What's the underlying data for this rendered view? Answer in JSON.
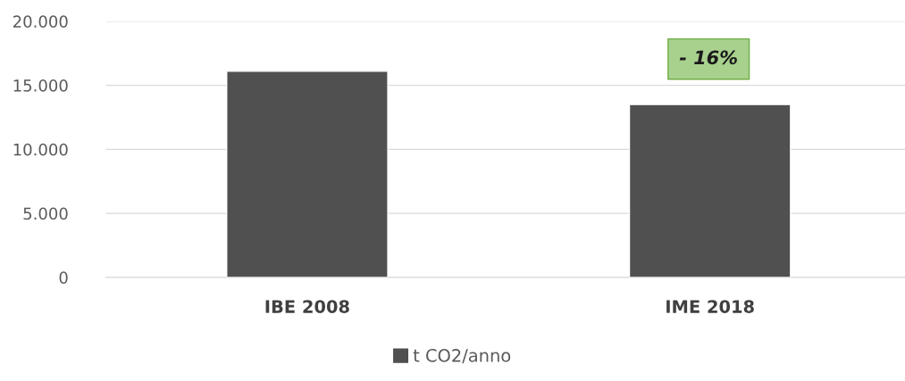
{
  "chart_data": {
    "type": "bar",
    "categories": [
      "IBE 2008",
      "IME 2018"
    ],
    "series": [
      {
        "name": "t CO2/anno",
        "color": "#505050",
        "values": [
          16100,
          13500
        ]
      }
    ],
    "ylim": [
      0,
      20000
    ],
    "yticks": [
      {
        "value": 0,
        "label": "0"
      },
      {
        "value": 5000,
        "label": "5.000"
      },
      {
        "value": 10000,
        "label": "10.000"
      },
      {
        "value": 15000,
        "label": "15.000"
      },
      {
        "value": 20000,
        "label": "20.000"
      }
    ],
    "grid": "y",
    "legend": "bottom",
    "annotations": [
      "- 16%"
    ]
  }
}
